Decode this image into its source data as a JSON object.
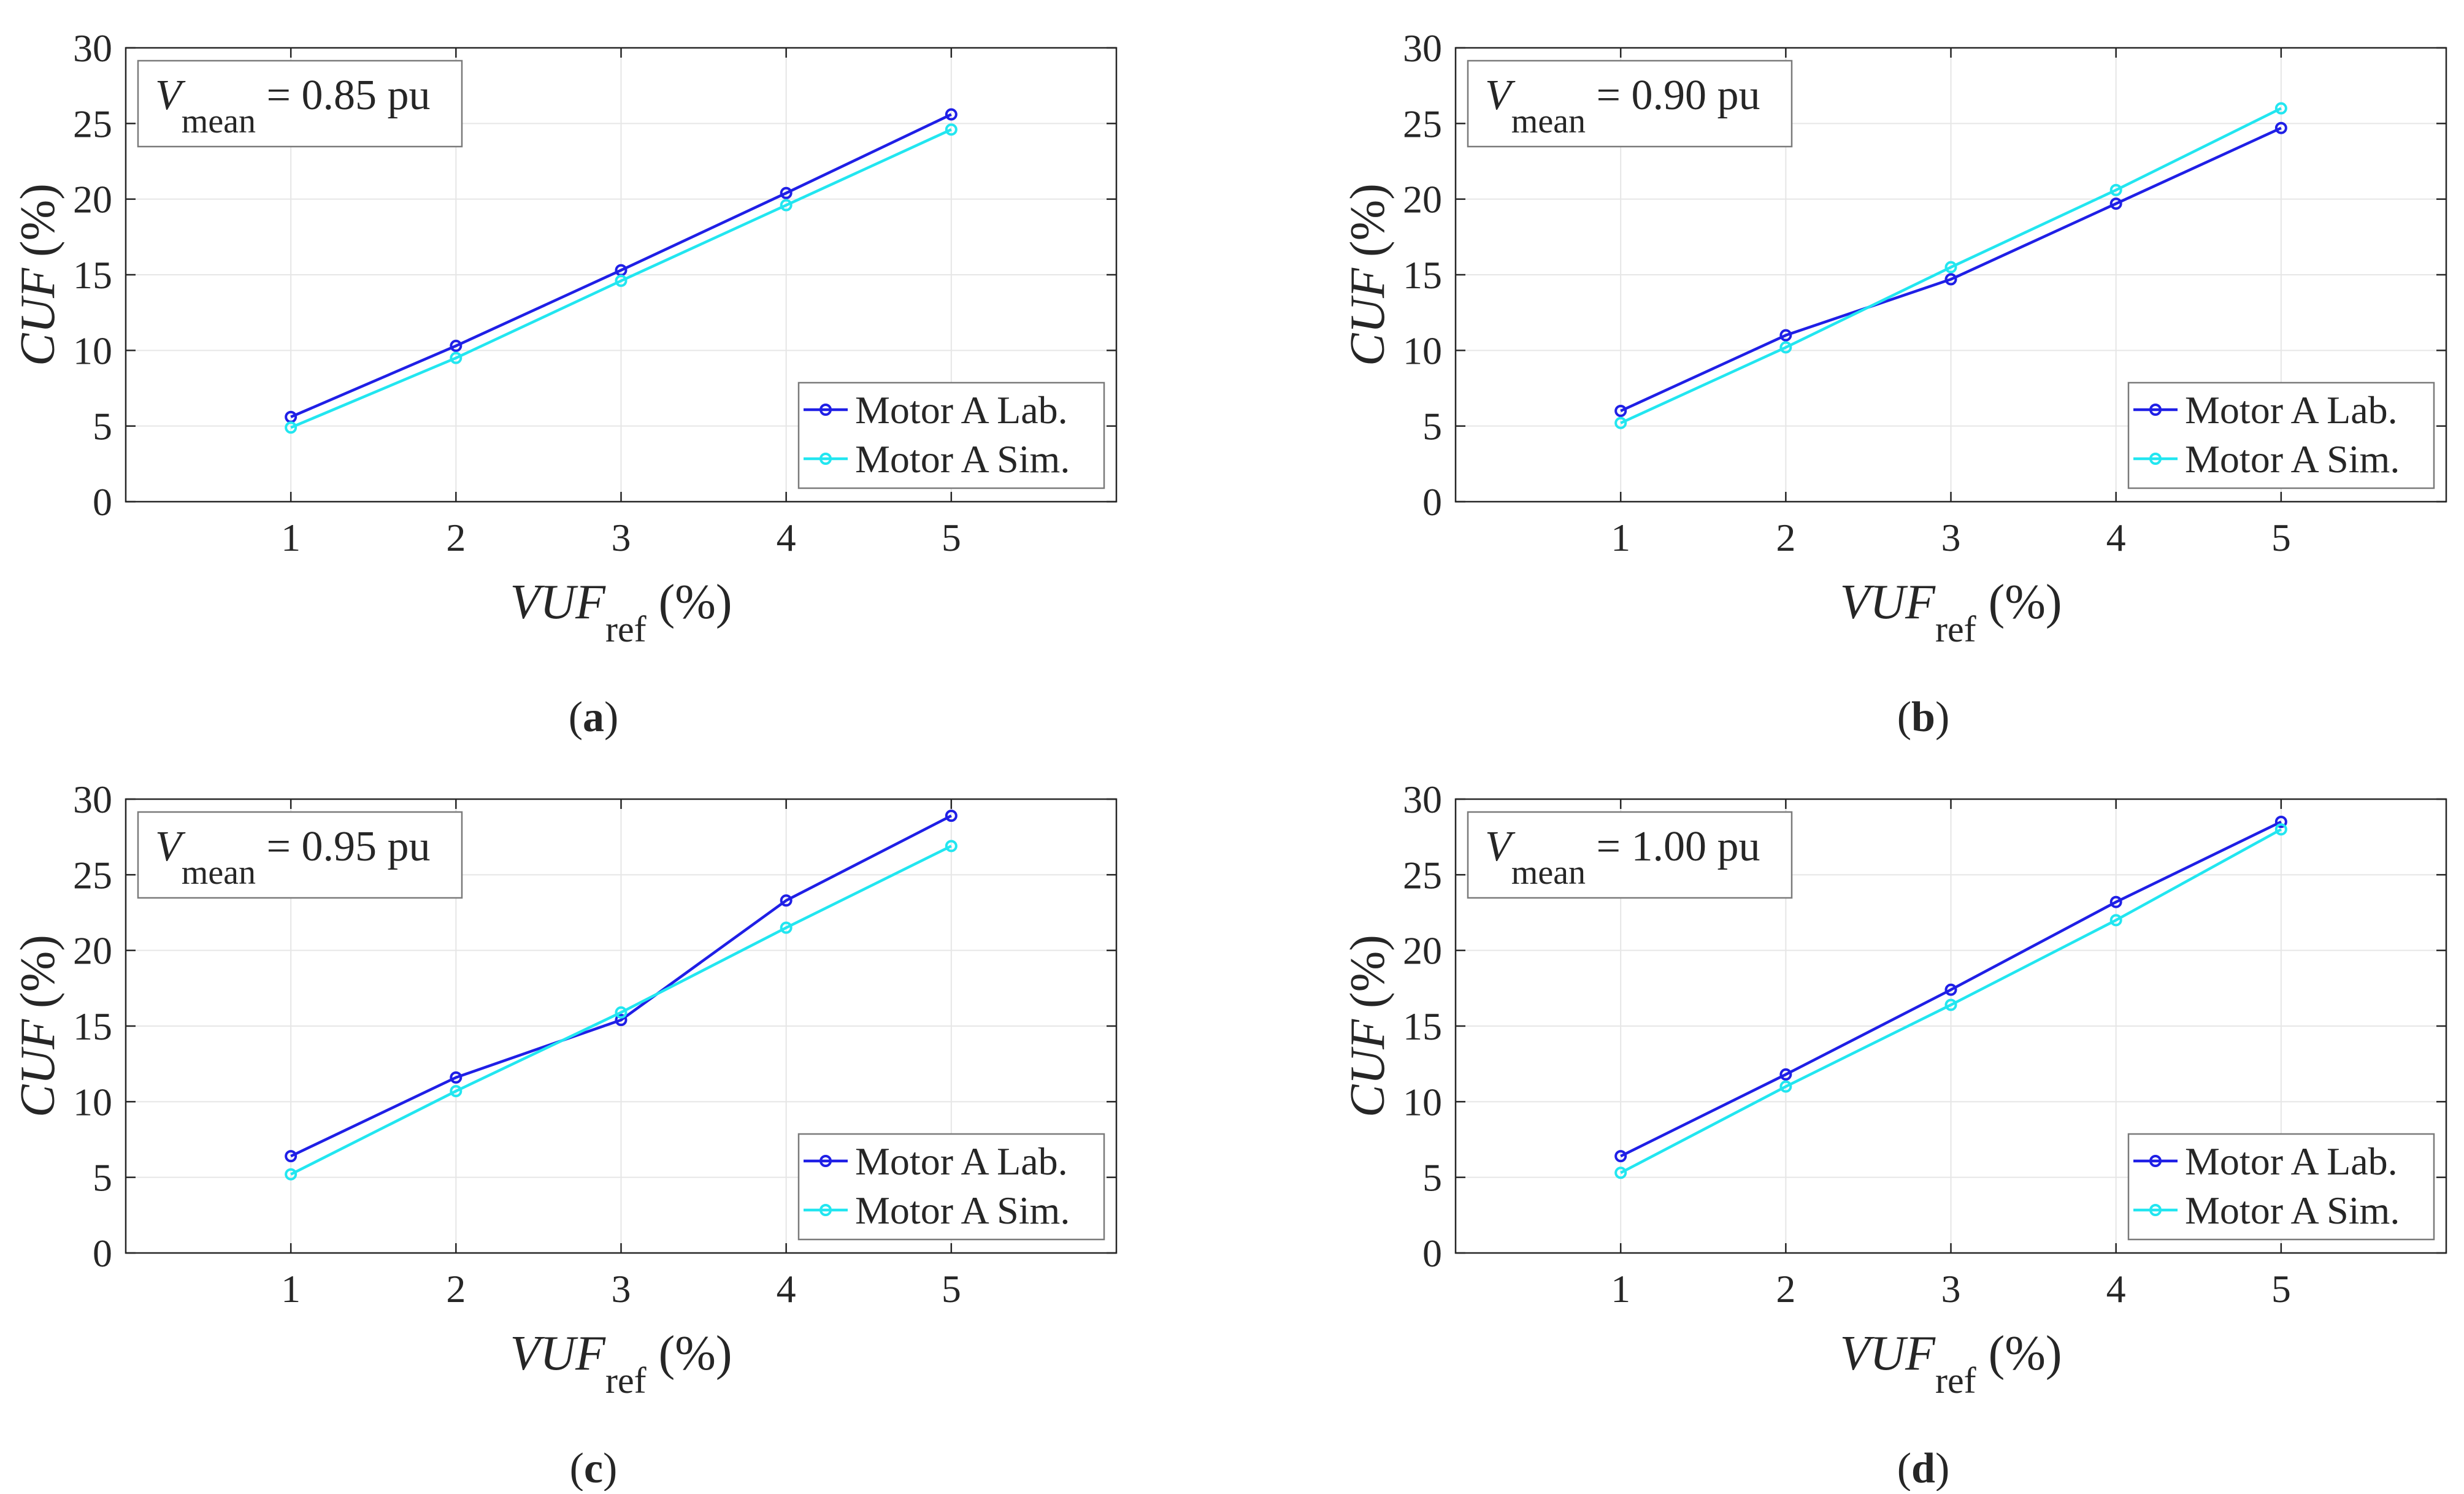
{
  "colors": {
    "lab": "#1f1fe6",
    "sim": "#22e6f0",
    "axis": "#262626",
    "grid": "#e6e6e6",
    "legend_border": "#7a7a7a"
  },
  "chart_data": [
    {
      "panel": "a",
      "panel_label": "(a)",
      "type": "line",
      "annotation": {
        "symbol": "V",
        "subscript": "mean",
        "value": " = 0.85 pu"
      },
      "xlabel": {
        "main": "VUF",
        "subscript": "ref",
        "unit": " (%)"
      },
      "ylabel": "CUF (%)",
      "ylabel_var": "CUF",
      "ylabel_unit": "(%)",
      "xlim": [
        0,
        6
      ],
      "ylim": [
        0,
        30
      ],
      "xticks": [
        1,
        2,
        3,
        4,
        5
      ],
      "yticks": [
        0,
        5,
        10,
        15,
        20,
        25,
        30
      ],
      "grid": true,
      "legend_position": "bottom-right",
      "x": [
        1,
        2,
        3,
        4,
        5
      ],
      "series": [
        {
          "name": "Motor A Lab.",
          "values": [
            5.6,
            10.3,
            15.3,
            20.4,
            25.6
          ]
        },
        {
          "name": "Motor A Sim.",
          "values": [
            4.9,
            9.5,
            14.6,
            19.6,
            24.6
          ]
        }
      ]
    },
    {
      "panel": "b",
      "panel_label": "(b)",
      "type": "line",
      "annotation": {
        "symbol": "V",
        "subscript": "mean",
        "value": " = 0.90 pu"
      },
      "xlabel": {
        "main": "VUF",
        "subscript": "ref",
        "unit": " (%)"
      },
      "ylabel": "CUF (%)",
      "ylabel_var": "CUF",
      "ylabel_unit": "(%)",
      "xlim": [
        0,
        6
      ],
      "ylim": [
        0,
        30
      ],
      "xticks": [
        1,
        2,
        3,
        4,
        5
      ],
      "yticks": [
        0,
        5,
        10,
        15,
        20,
        25,
        30
      ],
      "grid": true,
      "legend_position": "bottom-right",
      "x": [
        1,
        2,
        3,
        4,
        5
      ],
      "series": [
        {
          "name": "Motor A Lab.",
          "values": [
            6.0,
            11.0,
            14.7,
            19.7,
            24.7
          ]
        },
        {
          "name": "Motor A Sim.",
          "values": [
            5.2,
            10.2,
            15.5,
            20.6,
            26.0
          ]
        }
      ]
    },
    {
      "panel": "c",
      "panel_label": "(c)",
      "type": "line",
      "annotation": {
        "symbol": "V",
        "subscript": "mean",
        "value": " = 0.95 pu"
      },
      "xlabel": {
        "main": "VUF",
        "subscript": "ref",
        "unit": " (%)"
      },
      "ylabel": "CUF (%)",
      "ylabel_var": "CUF",
      "ylabel_unit": "(%)",
      "xlim": [
        0,
        6
      ],
      "ylim": [
        0,
        30
      ],
      "xticks": [
        1,
        2,
        3,
        4,
        5
      ],
      "yticks": [
        0,
        5,
        10,
        15,
        20,
        25,
        30
      ],
      "grid": true,
      "legend_position": "bottom-right",
      "x": [
        1,
        2,
        3,
        4,
        5
      ],
      "series": [
        {
          "name": "Motor A Lab.",
          "values": [
            6.4,
            11.6,
            15.4,
            23.3,
            28.9
          ]
        },
        {
          "name": "Motor A Sim.",
          "values": [
            5.2,
            10.7,
            15.9,
            21.5,
            26.9
          ]
        }
      ]
    },
    {
      "panel": "d",
      "panel_label": "(d)",
      "type": "line",
      "annotation": {
        "symbol": "V",
        "subscript": "mean",
        "value": " = 1.00 pu"
      },
      "xlabel": {
        "main": "VUF",
        "subscript": "ref",
        "unit": " (%)"
      },
      "ylabel": "CUF (%)",
      "ylabel_var": "CUF",
      "ylabel_unit": "(%)",
      "xlim": [
        0,
        6
      ],
      "ylim": [
        0,
        30
      ],
      "xticks": [
        1,
        2,
        3,
        4,
        5
      ],
      "yticks": [
        0,
        5,
        10,
        15,
        20,
        25,
        30
      ],
      "grid": true,
      "legend_position": "bottom-right",
      "x": [
        1,
        2,
        3,
        4,
        5
      ],
      "series": [
        {
          "name": "Motor A Lab.",
          "values": [
            6.4,
            11.8,
            17.4,
            23.2,
            28.5
          ]
        },
        {
          "name": "Motor A Sim.",
          "values": [
            5.3,
            11.0,
            16.4,
            22.0,
            28.0
          ]
        }
      ]
    }
  ]
}
